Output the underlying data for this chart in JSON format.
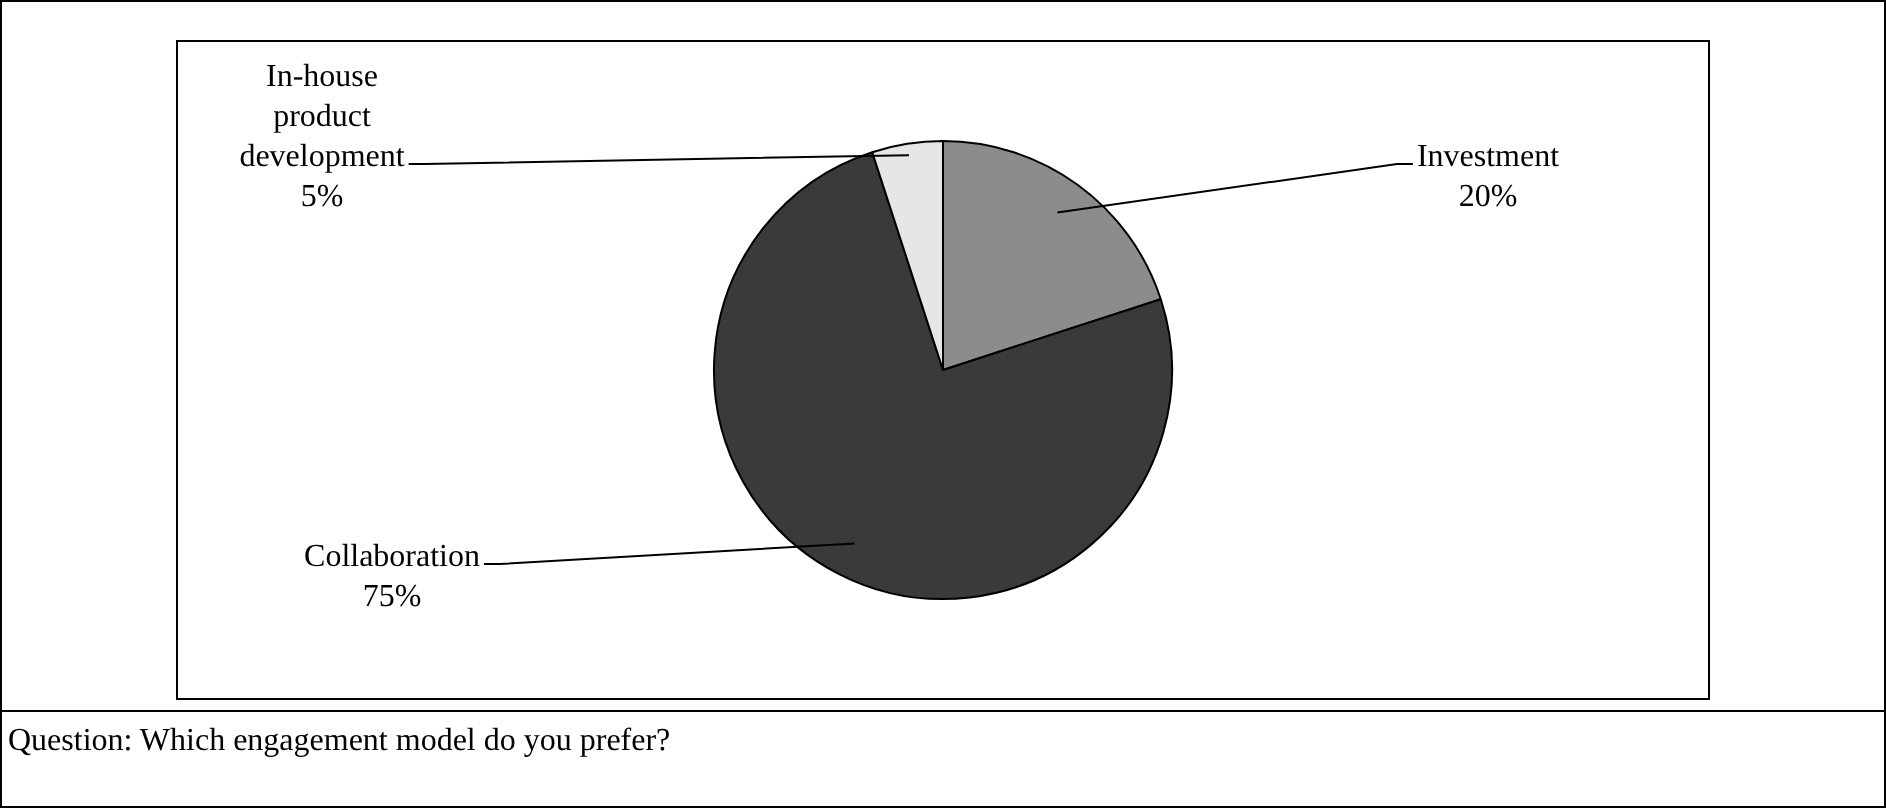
{
  "chart_data": {
    "type": "pie",
    "categories": [
      "Investment",
      "Collaboration",
      "In-house product development"
    ],
    "values": [
      20,
      75,
      5
    ],
    "value_labels": [
      "20%",
      "75%",
      "5%"
    ],
    "colors": [
      "#8c8c8c",
      "#3a3a3a",
      "#e6e6e6"
    ],
    "legend": false,
    "annotations": [
      "Question: Which engagement model do you prefer?"
    ]
  }
}
